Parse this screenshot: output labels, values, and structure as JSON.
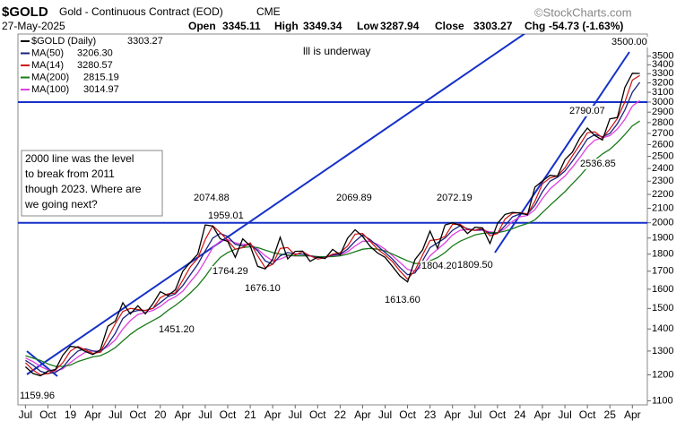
{
  "chart_data": {
    "type": "line",
    "symbol": "$GOLD",
    "title": "Gold - Continuous Contract (EOD)",
    "exchange": "CME",
    "date": "27-May-2025",
    "quote": [
      {
        "label": "Open",
        "value": "3345.11"
      },
      {
        "label": "High",
        "value": "3349.34"
      },
      {
        "label": "Low",
        "value": "3287.94"
      },
      {
        "label": "Close",
        "value": "3303.27"
      },
      {
        "label": "Chg",
        "value": "-54.73 (-1.63%)"
      }
    ],
    "credit": "©StockCharts.com",
    "log_scale": true,
    "ylim": [
      1085,
      3770
    ],
    "yticks": [
      1100,
      1200,
      1300,
      1400,
      1500,
      1600,
      1700,
      1800,
      1900,
      2000,
      2100,
      2200,
      2300,
      2400,
      2500,
      2600,
      2700,
      2800,
      2900,
      3000,
      3100,
      3200,
      3300,
      3400,
      3500
    ],
    "x": [
      "2018-07",
      "2018-08",
      "2018-09",
      "2018-10",
      "2018-11",
      "2018-12",
      "2019-01",
      "2019-02",
      "2019-03",
      "2019-04",
      "2019-05",
      "2019-06",
      "2019-07",
      "2019-08",
      "2019-09",
      "2019-10",
      "2019-11",
      "2019-12",
      "2020-01",
      "2020-02",
      "2020-03",
      "2020-04",
      "2020-05",
      "2020-06",
      "2020-07",
      "2020-08",
      "2020-09",
      "2020-10",
      "2020-11",
      "2020-12",
      "2021-01",
      "2021-02",
      "2021-03",
      "2021-04",
      "2021-05",
      "2021-06",
      "2021-07",
      "2021-08",
      "2021-09",
      "2021-10",
      "2021-11",
      "2021-12",
      "2022-01",
      "2022-02",
      "2022-03",
      "2022-04",
      "2022-05",
      "2022-06",
      "2022-07",
      "2022-08",
      "2022-09",
      "2022-10",
      "2022-11",
      "2022-12",
      "2023-01",
      "2023-02",
      "2023-03",
      "2023-04",
      "2023-05",
      "2023-06",
      "2023-07",
      "2023-08",
      "2023-09",
      "2023-10",
      "2023-11",
      "2023-12",
      "2024-01",
      "2024-02",
      "2024-03",
      "2024-04",
      "2024-05",
      "2024-06",
      "2024-07",
      "2024-08",
      "2024-09",
      "2024-10",
      "2024-11",
      "2024-12",
      "2025-01",
      "2025-02",
      "2025-03",
      "2025-04",
      "2025-05"
    ],
    "xticks": [
      {
        "value": "2018-07",
        "label": "Jul"
      },
      {
        "value": "2018-10",
        "label": "Oct"
      },
      {
        "value": "2019-01",
        "label": "19"
      },
      {
        "value": "2019-04",
        "label": "Apr"
      },
      {
        "value": "2019-07",
        "label": "Jul"
      },
      {
        "value": "2019-10",
        "label": "Oct"
      },
      {
        "value": "2020-01",
        "label": "20"
      },
      {
        "value": "2020-04",
        "label": "Apr"
      },
      {
        "value": "2020-07",
        "label": "Jul"
      },
      {
        "value": "2020-10",
        "label": "Oct"
      },
      {
        "value": "2021-01",
        "label": "21"
      },
      {
        "value": "2021-04",
        "label": "Apr"
      },
      {
        "value": "2021-07",
        "label": "Jul"
      },
      {
        "value": "2021-10",
        "label": "Oct"
      },
      {
        "value": "2022-01",
        "label": "22"
      },
      {
        "value": "2022-04",
        "label": "Apr"
      },
      {
        "value": "2022-07",
        "label": "Jul"
      },
      {
        "value": "2022-10",
        "label": "Oct"
      },
      {
        "value": "2023-01",
        "label": "23"
      },
      {
        "value": "2023-04",
        "label": "Apr"
      },
      {
        "value": "2023-07",
        "label": "Jul"
      },
      {
        "value": "2023-10",
        "label": "Oct"
      },
      {
        "value": "2024-01",
        "label": "24"
      },
      {
        "value": "2024-04",
        "label": "Apr"
      },
      {
        "value": "2024-07",
        "label": "Jul"
      },
      {
        "value": "2024-10",
        "label": "Oct"
      },
      {
        "value": "2025-01",
        "label": "25"
      },
      {
        "value": "2025-04",
        "label": "Apr"
      }
    ],
    "series": [
      {
        "name": "$GOLD (Daily)",
        "legend_value": "3303.27",
        "color": "#000000",
        "width": 1.3,
        "values": [
          1233,
          1206,
          1196,
          1215,
          1222,
          1282,
          1321,
          1316,
          1298,
          1285,
          1305,
          1413,
          1437,
          1529,
          1472,
          1514,
          1473,
          1523,
          1587,
          1566,
          1596,
          1700,
          1751,
          1800,
          1986,
          1978,
          1895,
          1879,
          1781,
          1895,
          1850,
          1728,
          1713,
          1768,
          1905,
          1771,
          1817,
          1818,
          1757,
          1783,
          1774,
          1829,
          1796,
          1900,
          1954,
          1911,
          1848,
          1807,
          1781,
          1726,
          1672,
          1640,
          1768,
          1826,
          1945,
          1836,
          1986,
          2000,
          1982,
          1929,
          1970,
          1966,
          1866,
          1996,
          2057,
          2071,
          2067,
          2054,
          2254,
          2302,
          2346,
          2339,
          2473,
          2536,
          2659,
          2749,
          2681,
          2641,
          2835,
          2848,
          3150,
          3305,
          3303
        ]
      },
      {
        "name": "MA(50)",
        "legend_value": "3206.30",
        "color": "#1a237e",
        "width": 1.3,
        "values": [
          1260,
          1240,
          1215,
          1205,
          1210,
          1230,
          1270,
          1300,
          1310,
          1300,
          1295,
          1330,
          1380,
          1450,
          1480,
          1490,
          1490,
          1500,
          1530,
          1560,
          1575,
          1620,
          1680,
          1740,
          1820,
          1900,
          1930,
          1910,
          1860,
          1850,
          1860,
          1820,
          1760,
          1740,
          1790,
          1810,
          1800,
          1800,
          1790,
          1780,
          1780,
          1795,
          1800,
          1830,
          1880,
          1920,
          1890,
          1850,
          1810,
          1770,
          1720,
          1680,
          1690,
          1760,
          1840,
          1870,
          1900,
          1950,
          1980,
          1960,
          1950,
          1955,
          1930,
          1930,
          1980,
          2040,
          2060,
          2060,
          2120,
          2220,
          2300,
          2330,
          2380,
          2460,
          2550,
          2650,
          2690,
          2670,
          2700,
          2790,
          2920,
          3100,
          3206
        ]
      },
      {
        "name": "MA(14)",
        "legend_value": "3280.57",
        "color": "#d01010",
        "width": 1.2,
        "values": [
          1250,
          1220,
          1200,
          1205,
          1220,
          1250,
          1300,
          1320,
          1305,
          1290,
          1295,
          1360,
          1425,
          1485,
          1500,
          1495,
          1490,
          1500,
          1555,
          1575,
          1580,
          1650,
          1725,
          1775,
          1890,
          1980,
          1935,
          1885,
          1830,
          1840,
          1870,
          1790,
          1720,
          1740,
          1835,
          1840,
          1795,
          1815,
          1790,
          1770,
          1780,
          1800,
          1810,
          1850,
          1925,
          1930,
          1880,
          1830,
          1795,
          1755,
          1700,
          1655,
          1705,
          1795,
          1885,
          1890,
          1910,
          1990,
          1990,
          1955,
          1950,
          1965,
          1915,
          1930,
          2025,
          2065,
          2070,
          2060,
          2150,
          2280,
          2325,
          2340,
          2405,
          2505,
          2600,
          2705,
          2715,
          2660,
          2740,
          2840,
          3000,
          3230,
          3281
        ]
      },
      {
        "name": "MA(200)",
        "legend_value": "2815.19",
        "color": "#1a7a1a",
        "width": 1.3,
        "values": [
          1280,
          1270,
          1260,
          1245,
          1235,
          1235,
          1240,
          1255,
          1265,
          1275,
          1280,
          1295,
          1315,
          1345,
          1375,
          1400,
          1420,
          1440,
          1460,
          1490,
          1515,
          1545,
          1580,
          1620,
          1670,
          1730,
          1780,
          1810,
          1830,
          1840,
          1845,
          1840,
          1825,
          1810,
          1800,
          1795,
          1790,
          1790,
          1790,
          1785,
          1785,
          1785,
          1790,
          1800,
          1815,
          1830,
          1835,
          1830,
          1820,
          1800,
          1780,
          1760,
          1745,
          1745,
          1760,
          1780,
          1810,
          1850,
          1880,
          1900,
          1920,
          1930,
          1935,
          1935,
          1945,
          1960,
          1980,
          1995,
          2020,
          2070,
          2120,
          2170,
          2220,
          2280,
          2340,
          2410,
          2470,
          2520,
          2560,
          2620,
          2690,
          2770,
          2815
        ]
      },
      {
        "name": "MA(100)",
        "legend_value": "3014.97",
        "color": "#e040e0",
        "width": 1.3,
        "values": [
          1270,
          1255,
          1235,
          1220,
          1215,
          1225,
          1250,
          1275,
          1295,
          1300,
          1300,
          1320,
          1350,
          1400,
          1440,
          1470,
          1480,
          1490,
          1510,
          1540,
          1560,
          1590,
          1640,
          1690,
          1760,
          1840,
          1880,
          1890,
          1870,
          1860,
          1860,
          1830,
          1790,
          1760,
          1770,
          1790,
          1790,
          1790,
          1790,
          1785,
          1780,
          1790,
          1795,
          1815,
          1850,
          1880,
          1880,
          1860,
          1830,
          1790,
          1750,
          1710,
          1700,
          1730,
          1790,
          1830,
          1870,
          1920,
          1950,
          1955,
          1950,
          1950,
          1940,
          1935,
          1960,
          2010,
          2040,
          2050,
          2090,
          2170,
          2240,
          2290,
          2340,
          2410,
          2490,
          2580,
          2640,
          2660,
          2680,
          2740,
          2830,
          2960,
          3015
        ]
      }
    ],
    "hlines": [
      3000,
      2000
    ],
    "hline_color": "#1530c8",
    "price_labels": [
      "1159.96",
      "1451.20",
      "1676.10",
      "1764.29",
      "1959.01",
      "2074.88",
      "2069.89",
      "2072.19",
      "1613.60",
      "1804.20",
      "1809.50",
      "2790.07",
      "2536.85",
      "3500.00"
    ],
    "note": "lll is underway",
    "callout": [
      "2000 line was the level",
      "to break from 2011",
      "though 2023. Where are",
      "we going next?"
    ]
  }
}
